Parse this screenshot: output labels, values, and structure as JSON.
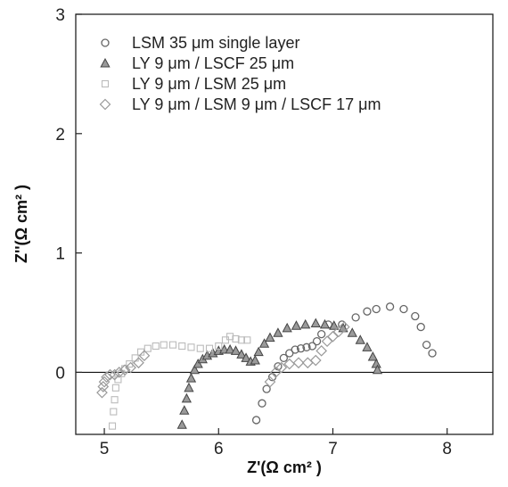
{
  "chart_data": {
    "type": "scatter",
    "xlabel": "Z'(Ω cm² )",
    "ylabel": "Z''(Ω cm² )",
    "xlim": [
      4.75,
      8.4
    ],
    "ylim": [
      -0.52,
      3.0
    ],
    "x_ticks": [
      "5",
      "6",
      "7",
      "8"
    ],
    "y_ticks": [
      "3",
      "2",
      "1",
      "0"
    ],
    "grid": false,
    "zero_line": true,
    "legend_position": "top-left",
    "series": [
      {
        "name": "LSM 35 μm single layer",
        "marker": "circle",
        "color": "#666666",
        "points": [
          [
            6.33,
            -0.4
          ],
          [
            6.38,
            -0.26
          ],
          [
            6.42,
            -0.14
          ],
          [
            6.47,
            -0.04
          ],
          [
            6.52,
            0.05
          ],
          [
            6.57,
            0.12
          ],
          [
            6.62,
            0.16
          ],
          [
            6.67,
            0.19
          ],
          [
            6.72,
            0.2
          ],
          [
            6.77,
            0.21
          ],
          [
            6.82,
            0.22
          ],
          [
            6.86,
            0.26
          ],
          [
            6.9,
            0.32
          ],
          [
            6.96,
            0.4
          ],
          [
            7.08,
            0.4
          ],
          [
            7.2,
            0.46
          ],
          [
            7.3,
            0.51
          ],
          [
            7.38,
            0.53
          ],
          [
            7.5,
            0.55
          ],
          [
            7.62,
            0.53
          ],
          [
            7.72,
            0.47
          ],
          [
            7.77,
            0.38
          ],
          [
            7.82,
            0.23
          ],
          [
            7.87,
            0.16
          ]
        ]
      },
      {
        "name": "LY 9 μm / LSCF 25 μm",
        "marker": "triangle",
        "color": "#555555",
        "points": [
          [
            5.68,
            -0.44
          ],
          [
            5.7,
            -0.32
          ],
          [
            5.72,
            -0.22
          ],
          [
            5.74,
            -0.13
          ],
          [
            5.76,
            -0.05
          ],
          [
            5.79,
            0.02
          ],
          [
            5.82,
            0.07
          ],
          [
            5.86,
            0.11
          ],
          [
            5.9,
            0.14
          ],
          [
            5.95,
            0.16
          ],
          [
            6.0,
            0.18
          ],
          [
            6.05,
            0.19
          ],
          [
            6.1,
            0.19
          ],
          [
            6.15,
            0.18
          ],
          [
            6.2,
            0.15
          ],
          [
            6.24,
            0.12
          ],
          [
            6.28,
            0.09
          ],
          [
            6.32,
            0.1
          ],
          [
            6.35,
            0.17
          ],
          [
            6.4,
            0.24
          ],
          [
            6.45,
            0.29
          ],
          [
            6.52,
            0.33
          ],
          [
            6.6,
            0.37
          ],
          [
            6.68,
            0.39
          ],
          [
            6.76,
            0.4
          ],
          [
            6.85,
            0.41
          ],
          [
            6.93,
            0.4
          ],
          [
            7.01,
            0.39
          ],
          [
            7.09,
            0.37
          ],
          [
            7.17,
            0.33
          ],
          [
            7.24,
            0.27
          ],
          [
            7.3,
            0.21
          ],
          [
            7.35,
            0.13
          ],
          [
            7.38,
            0.07
          ],
          [
            7.39,
            0.02
          ]
        ]
      },
      {
        "name": "LY 9 μm / LSM 25 μm",
        "marker": "square",
        "color": "#bbbbbb",
        "points": [
          [
            5.07,
            -0.45
          ],
          [
            5.08,
            -0.33
          ],
          [
            5.09,
            -0.23
          ],
          [
            5.1,
            -0.13
          ],
          [
            5.12,
            -0.06
          ],
          [
            5.15,
            -0.01
          ],
          [
            5.18,
            0.03
          ],
          [
            5.22,
            0.07
          ],
          [
            5.27,
            0.12
          ],
          [
            5.32,
            0.17
          ],
          [
            5.38,
            0.2
          ],
          [
            5.45,
            0.22
          ],
          [
            5.52,
            0.23
          ],
          [
            5.6,
            0.23
          ],
          [
            5.68,
            0.22
          ],
          [
            5.76,
            0.21
          ],
          [
            5.84,
            0.2
          ],
          [
            5.92,
            0.2
          ],
          [
            6.0,
            0.22
          ],
          [
            6.06,
            0.27
          ],
          [
            6.1,
            0.3
          ],
          [
            6.15,
            0.28
          ],
          [
            6.2,
            0.27
          ],
          [
            6.25,
            0.27
          ]
        ]
      },
      {
        "name": "LY 9 μm / LSM 9 μm / LSCF 17 μm",
        "marker": "diamond",
        "color": "#999999",
        "points": [
          [
            4.98,
            -0.17
          ],
          [
            4.99,
            -0.12
          ],
          [
            5.0,
            -0.08
          ],
          [
            5.02,
            -0.04
          ],
          [
            5.05,
            -0.02
          ],
          [
            5.09,
            -0.02
          ],
          [
            5.13,
            0.0
          ],
          [
            5.18,
            0.02
          ],
          [
            5.23,
            0.04
          ],
          [
            5.3,
            0.08
          ],
          [
            5.35,
            0.14
          ],
          [
            6.45,
            -0.08
          ],
          [
            6.5,
            0.0
          ],
          [
            6.55,
            0.04
          ],
          [
            6.62,
            0.07
          ],
          [
            6.7,
            0.08
          ],
          [
            6.78,
            0.08
          ],
          [
            6.85,
            0.1
          ],
          [
            6.9,
            0.18
          ],
          [
            6.95,
            0.26
          ],
          [
            7.0,
            0.3
          ],
          [
            7.05,
            0.34
          ],
          [
            7.1,
            0.38
          ]
        ]
      }
    ]
  }
}
